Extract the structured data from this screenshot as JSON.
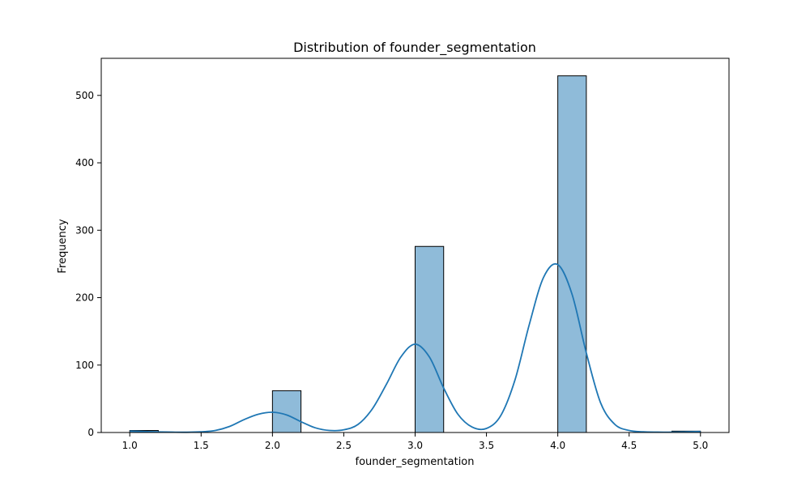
{
  "chart_data": {
    "type": "bar",
    "title": "Distribution of founder_segmentation",
    "xlabel": "founder_segmentation",
    "ylabel": "Frequency",
    "xlim": [
      0.8,
      5.2
    ],
    "ylim": [
      0,
      555
    ],
    "xticks": [
      1.0,
      1.5,
      2.0,
      2.5,
      3.0,
      3.5,
      4.0,
      4.5,
      5.0
    ],
    "xtick_labels": [
      "1.0",
      "1.5",
      "2.0",
      "2.5",
      "3.0",
      "3.5",
      "4.0",
      "4.5",
      "5.0"
    ],
    "yticks": [
      0,
      100,
      200,
      300,
      400,
      500
    ],
    "ytick_labels": [
      "0",
      "100",
      "200",
      "300",
      "400",
      "500"
    ],
    "grid": false,
    "bins": [
      {
        "x0": 1.0,
        "x1": 1.2,
        "count": 3
      },
      {
        "x0": 2.0,
        "x1": 2.2,
        "count": 62
      },
      {
        "x0": 3.0,
        "x1": 3.2,
        "count": 276
      },
      {
        "x0": 4.0,
        "x1": 4.2,
        "count": 529
      },
      {
        "x0": 4.8,
        "x1": 5.0,
        "count": 2
      }
    ],
    "kde": {
      "x": [
        1.0,
        1.1,
        1.2,
        1.3,
        1.4,
        1.5,
        1.6,
        1.7,
        1.8,
        1.9,
        2.0,
        2.1,
        2.2,
        2.3,
        2.4,
        2.5,
        2.6,
        2.7,
        2.8,
        2.9,
        3.0,
        3.1,
        3.2,
        3.3,
        3.4,
        3.5,
        3.6,
        3.7,
        3.8,
        3.9,
        4.0,
        4.1,
        4.2,
        4.3,
        4.4,
        4.5,
        4.6,
        4.7,
        4.8,
        4.9,
        5.0
      ],
      "y": [
        2,
        1.5,
        0.8,
        0.5,
        0.4,
        1,
        3,
        9,
        19,
        27,
        30,
        26,
        16,
        7,
        3,
        4,
        12,
        35,
        72,
        112,
        131,
        112,
        66,
        27,
        8,
        6,
        25,
        78,
        160,
        230,
        249,
        205,
        118,
        44,
        12,
        3,
        1,
        0.6,
        0.5,
        1,
        1.5
      ]
    },
    "colors": {
      "bar_fill": "#1f77b4",
      "bar_fill_opacity": 0.5,
      "bar_edge": "#000000",
      "kde_line": "#1f77b4"
    }
  }
}
